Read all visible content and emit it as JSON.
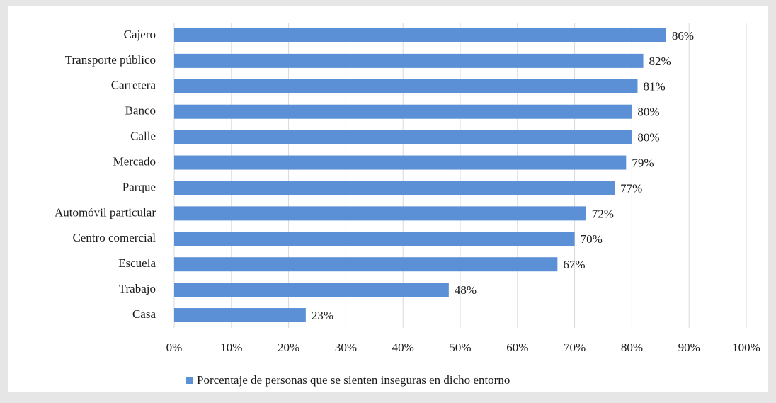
{
  "chart_data": {
    "type": "bar",
    "orientation": "horizontal",
    "categories": [
      "Cajero",
      "Transporte público",
      "Carretera",
      "Banco",
      "Calle",
      "Mercado",
      "Parque",
      "Automóvil particular",
      "Centro comercial",
      "Escuela",
      "Trabajo",
      "Casa"
    ],
    "series": [
      {
        "name": "Porcentaje de personas que se sienten inseguras en dicho entorno",
        "color": "#5b8fd6",
        "values": [
          86,
          82,
          81,
          80,
          80,
          79,
          77,
          72,
          70,
          67,
          48,
          23
        ],
        "value_labels": [
          "86%",
          "82%",
          "81%",
          "80%",
          "80%",
          "79%",
          "77%",
          "72%",
          "70%",
          "67%",
          "48%",
          "23%"
        ]
      }
    ],
    "xlim": [
      0,
      100
    ],
    "xticks": [
      {
        "value": 0,
        "label": "0%"
      },
      {
        "value": 10,
        "label": "10%"
      },
      {
        "value": 20,
        "label": "20%"
      },
      {
        "value": 30,
        "label": "30%"
      },
      {
        "value": 40,
        "label": "40%"
      },
      {
        "value": 50,
        "label": "50%"
      },
      {
        "value": 60,
        "label": "60%"
      },
      {
        "value": 70,
        "label": "70%"
      },
      {
        "value": 80,
        "label": "80%"
      },
      {
        "value": 90,
        "label": "90%"
      },
      {
        "value": 100,
        "label": "100%"
      }
    ],
    "grid": true,
    "legend": "bottom"
  }
}
